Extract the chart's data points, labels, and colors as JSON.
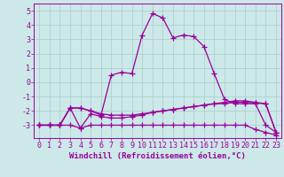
{
  "x": [
    0,
    1,
    2,
    3,
    4,
    5,
    6,
    7,
    8,
    9,
    10,
    11,
    12,
    13,
    14,
    15,
    16,
    17,
    18,
    19,
    20,
    21,
    22,
    23
  ],
  "series": [
    [
      -3,
      -3,
      -3,
      -3,
      -3.2,
      -3,
      -3,
      -3,
      -3,
      -3,
      -3,
      -3,
      -3,
      -3,
      -3,
      -3,
      -3,
      -3,
      -3,
      -3,
      -3,
      -3.3,
      -3.5,
      -3.7
    ],
    [
      -3,
      -3,
      -3,
      -1.8,
      -1.8,
      -2,
      -2.2,
      -2.3,
      -2.3,
      -2.3,
      -2.2,
      -2.1,
      -2.0,
      -1.9,
      -1.8,
      -1.7,
      -1.6,
      -1.5,
      -1.5,
      -1.4,
      -1.4,
      -1.45,
      -1.5,
      -3.5
    ],
    [
      -3,
      -3,
      -3,
      -1.8,
      -3.2,
      -2.2,
      -2.4,
      -2.5,
      -2.5,
      -2.4,
      -2.3,
      -2.1,
      -2.0,
      -1.9,
      -1.8,
      -1.7,
      -1.6,
      -1.5,
      -1.4,
      -1.3,
      -1.3,
      -1.4,
      -1.5,
      -3.5
    ],
    [
      -3,
      -3,
      -3,
      -1.8,
      -1.8,
      -2,
      -2.3,
      0.5,
      0.7,
      0.6,
      3.3,
      4.8,
      4.5,
      3.1,
      3.3,
      3.2,
      2.5,
      0.6,
      -1.2,
      -1.5,
      -1.5,
      -1.5,
      -3.0,
      -3.5
    ]
  ],
  "color": "#990099",
  "bg_color": "#cce8e8",
  "grid_color": "#aacccc",
  "xlabel": "Windchill (Refroidissement éolien,°C)",
  "xlim": [
    -0.5,
    23.5
  ],
  "ylim": [
    -3.9,
    5.5
  ],
  "yticks": [
    -3,
    -2,
    -1,
    0,
    1,
    2,
    3,
    4,
    5
  ],
  "xticks": [
    0,
    1,
    2,
    3,
    4,
    5,
    6,
    7,
    8,
    9,
    10,
    11,
    12,
    13,
    14,
    15,
    16,
    17,
    18,
    19,
    20,
    21,
    22,
    23
  ],
  "marker": "+",
  "markersize": 4,
  "linewidth": 0.9,
  "xlabel_fontsize": 6.5,
  "tick_fontsize": 6.0
}
